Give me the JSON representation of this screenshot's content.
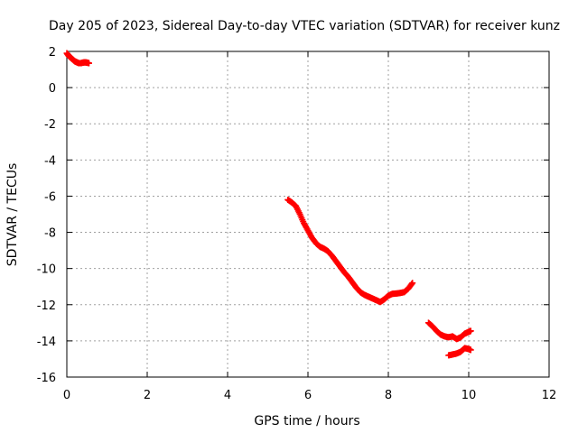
{
  "chart_data": {
    "type": "scatter",
    "title": "Day 205 of 2023, Sidereal Day-to-day VTEC variation (SDTVAR) for receiver kunz",
    "xlabel": "GPS time / hours",
    "ylabel": "SDTVAR / TECUs",
    "xlim": [
      0,
      12
    ],
    "ylim": [
      -16,
      2
    ],
    "xticks": [
      "0",
      "2",
      "4",
      "6",
      "8",
      "10",
      "12"
    ],
    "yticks": [
      "2",
      "0",
      "-2",
      "-4",
      "-6",
      "-8",
      "-10",
      "-12",
      "-14",
      "-16"
    ],
    "grid": true,
    "marker": "plus",
    "series": [
      {
        "name": "segment-1",
        "color": "#ff0000",
        "points": [
          [
            0.0,
            1.9
          ],
          [
            0.05,
            1.75
          ],
          [
            0.1,
            1.65
          ],
          [
            0.15,
            1.55
          ],
          [
            0.2,
            1.45
          ],
          [
            0.25,
            1.4
          ],
          [
            0.3,
            1.35
          ],
          [
            0.35,
            1.35
          ],
          [
            0.4,
            1.38
          ],
          [
            0.45,
            1.4
          ],
          [
            0.5,
            1.38
          ],
          [
            0.55,
            1.35
          ]
        ]
      },
      {
        "name": "segment-2",
        "color": "#ff0000",
        "points": [
          [
            5.5,
            -6.2
          ],
          [
            5.6,
            -6.35
          ],
          [
            5.7,
            -6.55
          ],
          [
            5.8,
            -7.0
          ],
          [
            5.9,
            -7.5
          ],
          [
            6.0,
            -7.9
          ],
          [
            6.1,
            -8.3
          ],
          [
            6.2,
            -8.6
          ],
          [
            6.3,
            -8.8
          ],
          [
            6.4,
            -8.9
          ],
          [
            6.5,
            -9.05
          ],
          [
            6.6,
            -9.3
          ],
          [
            6.7,
            -9.6
          ],
          [
            6.8,
            -9.9
          ],
          [
            6.9,
            -10.2
          ],
          [
            7.0,
            -10.45
          ],
          [
            7.1,
            -10.75
          ],
          [
            7.2,
            -11.05
          ],
          [
            7.3,
            -11.3
          ],
          [
            7.4,
            -11.45
          ],
          [
            7.5,
            -11.55
          ],
          [
            7.6,
            -11.65
          ],
          [
            7.7,
            -11.75
          ],
          [
            7.8,
            -11.85
          ],
          [
            7.9,
            -11.7
          ],
          [
            8.0,
            -11.5
          ],
          [
            8.1,
            -11.4
          ],
          [
            8.2,
            -11.38
          ],
          [
            8.3,
            -11.35
          ],
          [
            8.4,
            -11.3
          ],
          [
            8.5,
            -11.1
          ],
          [
            8.6,
            -10.8
          ]
        ]
      },
      {
        "name": "segment-3",
        "color": "#ff0000",
        "points": [
          [
            9.0,
            -13.0
          ],
          [
            9.1,
            -13.2
          ],
          [
            9.2,
            -13.45
          ],
          [
            9.3,
            -13.65
          ],
          [
            9.4,
            -13.75
          ],
          [
            9.5,
            -13.8
          ],
          [
            9.6,
            -13.75
          ],
          [
            9.7,
            -13.9
          ],
          [
            9.8,
            -13.8
          ],
          [
            9.9,
            -13.6
          ],
          [
            10.0,
            -13.5
          ],
          [
            10.05,
            -13.45
          ]
        ]
      },
      {
        "name": "segment-4",
        "color": "#ff0000",
        "points": [
          [
            9.5,
            -14.8
          ],
          [
            9.6,
            -14.75
          ],
          [
            9.7,
            -14.7
          ],
          [
            9.8,
            -14.6
          ],
          [
            9.9,
            -14.4
          ],
          [
            10.0,
            -14.45
          ],
          [
            10.05,
            -14.5
          ]
        ]
      }
    ]
  }
}
